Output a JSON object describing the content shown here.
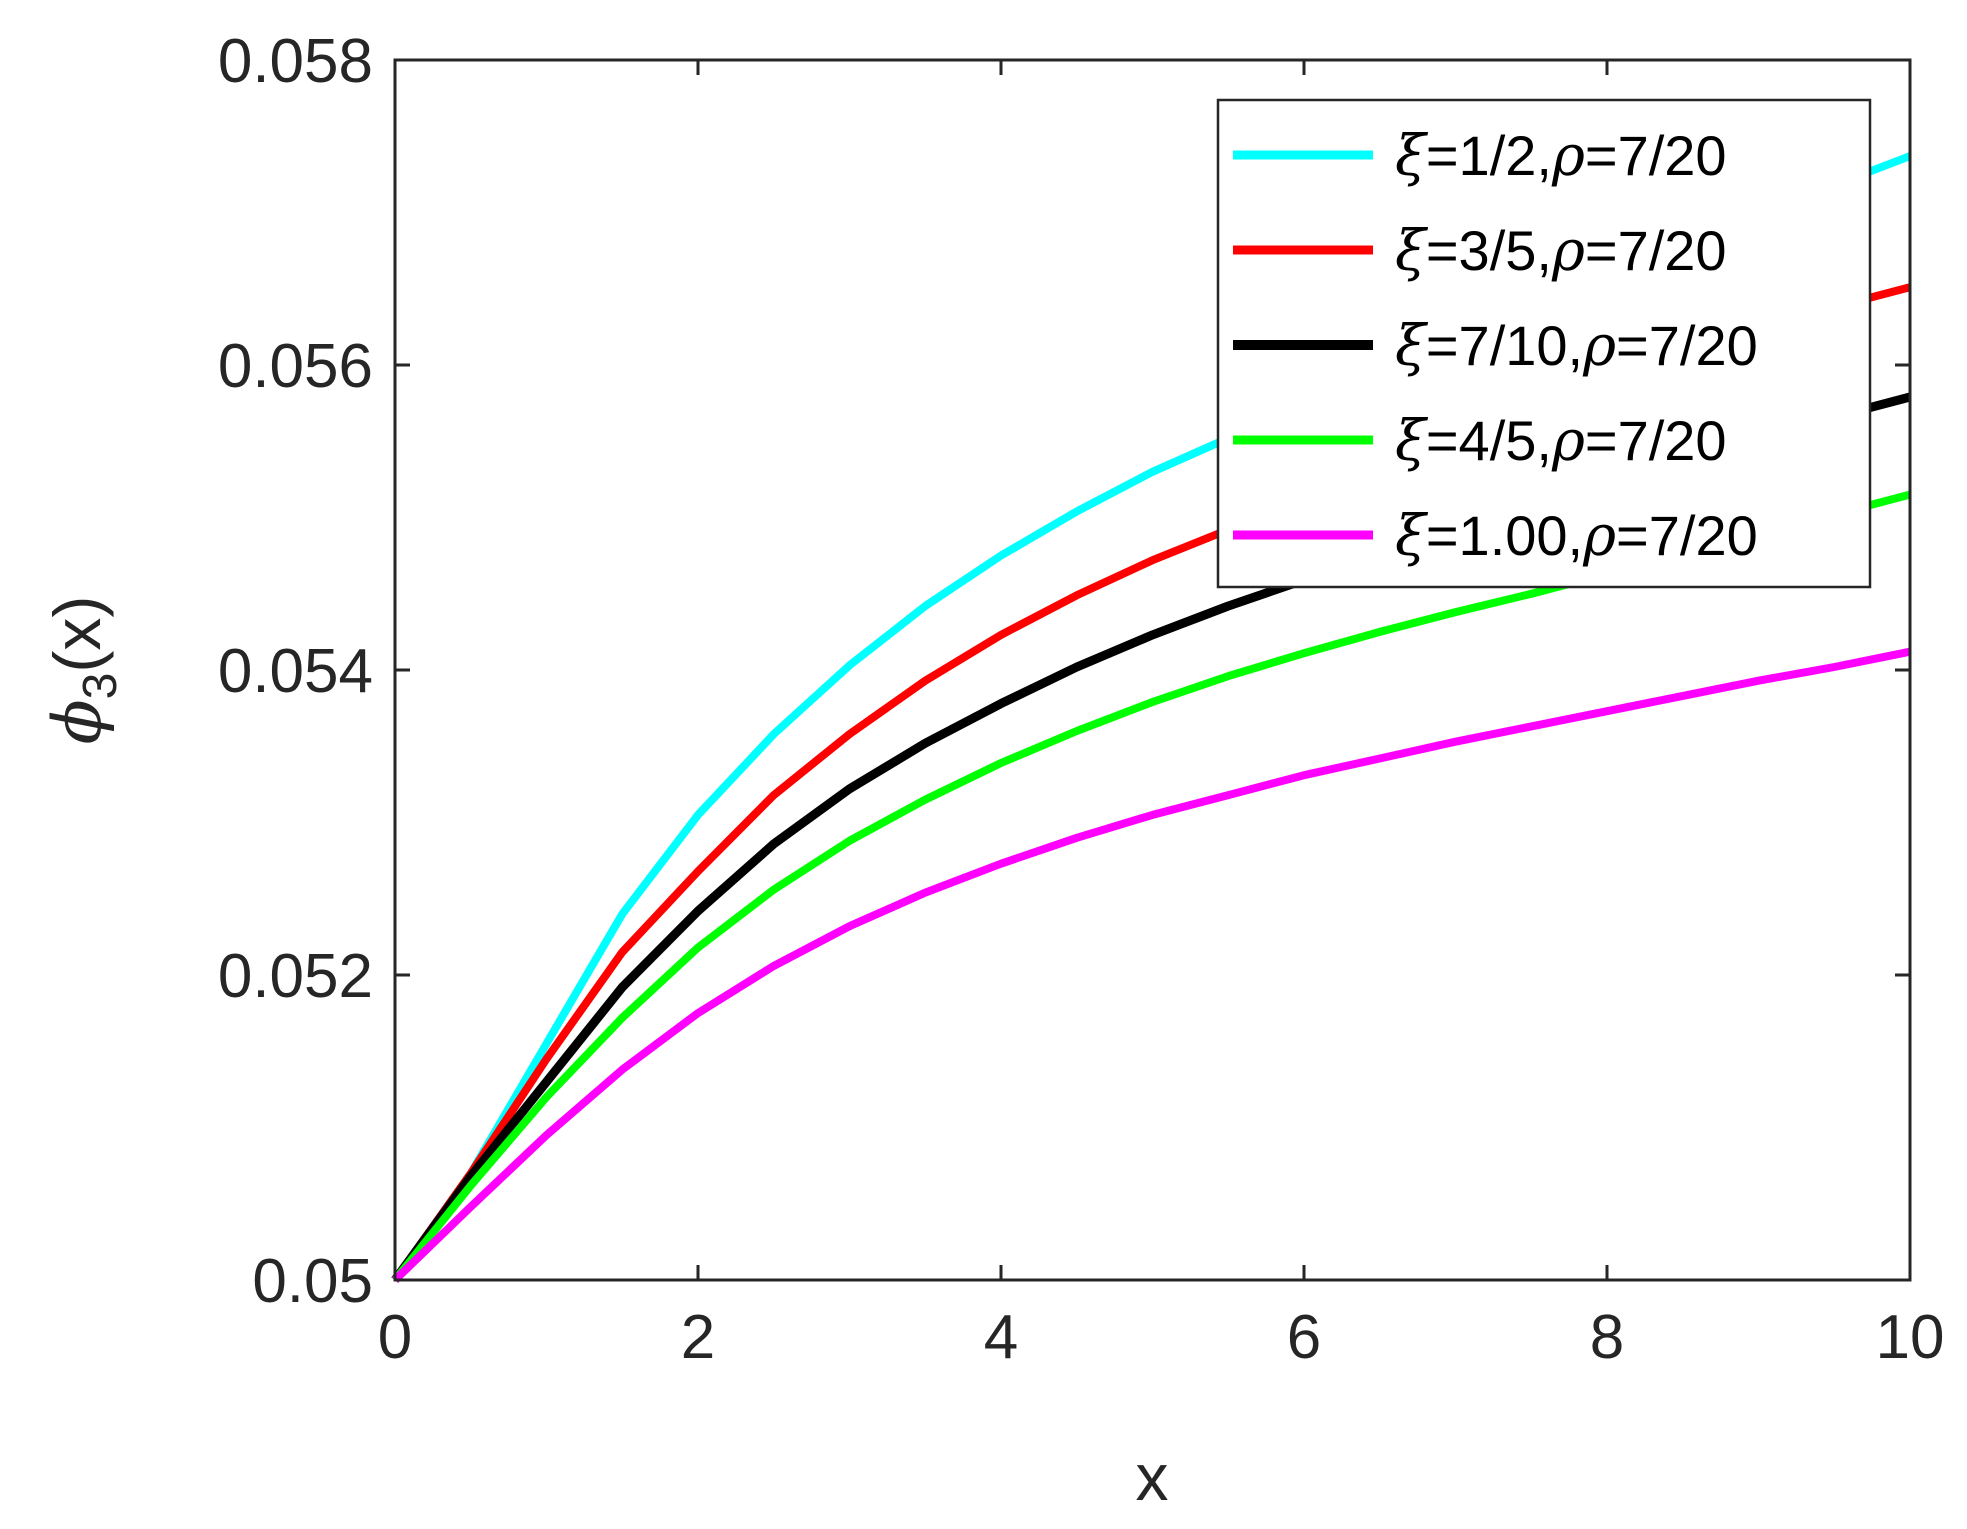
{
  "chart_data": {
    "type": "line",
    "xlabel": "x",
    "ylabel": {
      "main": "ϕ",
      "sub": "3",
      "tail": "(x)"
    },
    "xlim": [
      0,
      10
    ],
    "ylim": [
      0.05,
      0.058
    ],
    "xticks": [
      0,
      2,
      4,
      6,
      8,
      10
    ],
    "xtick_labels": [
      "0",
      "2",
      "4",
      "6",
      "8",
      "10"
    ],
    "yticks": [
      0.05,
      0.052,
      0.054,
      0.056,
      0.058
    ],
    "ytick_labels": [
      "0.05",
      "0.052",
      "0.054",
      "0.056",
      "0.058"
    ],
    "grid": false,
    "legend_position": "top-right",
    "x": [
      0,
      0.5,
      1,
      1.5,
      2,
      2.5,
      3,
      3.5,
      4,
      4.5,
      5,
      5.5,
      6,
      6.5,
      7,
      7.5,
      8,
      8.5,
      9,
      9.5,
      10
    ],
    "series": [
      {
        "name": "ξ=1/2,ρ=7/20",
        "legend": {
          "xi": "ξ",
          "mid": "=1/2,",
          "rho": "ρ",
          "tail": "=7/20"
        },
        "color": "#00ffff",
        "values": [
          0.05,
          0.0507,
          0.05155,
          0.0524,
          0.05305,
          0.05358,
          0.05403,
          0.05442,
          0.05475,
          0.05504,
          0.0553,
          0.05552,
          0.05572,
          0.0559,
          0.05607,
          0.05623,
          0.05658,
          0.0568,
          0.05698,
          0.05718,
          0.05737
        ]
      },
      {
        "name": "ξ=3/5,ρ=7/20",
        "legend": {
          "xi": "ξ",
          "mid": "=3/5,",
          "rho": "ρ",
          "tail": "=7/20"
        },
        "color": "#ff0000",
        "values": [
          0.05,
          0.0507,
          0.05145,
          0.05215,
          0.05268,
          0.05318,
          0.05358,
          0.05393,
          0.05423,
          0.05449,
          0.05472,
          0.05492,
          0.0551,
          0.05527,
          0.05542,
          0.05556,
          0.05595,
          0.0561,
          0.05625,
          0.05638,
          0.05651
        ]
      },
      {
        "name": "ξ=7/10,ρ=7/20",
        "legend": {
          "xi": "ξ",
          "mid": "=7/10,",
          "rho": "ρ",
          "tail": "=7/20"
        },
        "color": "#000000",
        "values": [
          0.05,
          0.05068,
          0.0513,
          0.05192,
          0.05242,
          0.05286,
          0.05322,
          0.05352,
          0.05378,
          0.05402,
          0.05423,
          0.05442,
          0.05459,
          0.05474,
          0.05488,
          0.05502,
          0.05525,
          0.05539,
          0.05552,
          0.05566,
          0.05579
        ]
      },
      {
        "name": "ξ=4/5,ρ=7/20",
        "legend": {
          "xi": "ξ",
          "mid": "=4/5,",
          "rho": "ρ",
          "tail": "=7/20"
        },
        "color": "#00ff00",
        "values": [
          0.05,
          0.05062,
          0.0512,
          0.05172,
          0.05218,
          0.05256,
          0.05288,
          0.05315,
          0.05339,
          0.0536,
          0.05379,
          0.05396,
          0.05411,
          0.05425,
          0.05438,
          0.0545,
          0.05463,
          0.05477,
          0.0549,
          0.05502,
          0.05515
        ]
      },
      {
        "name": "ξ=1.00,ρ=7/20",
        "legend": {
          "xi": "ξ",
          "mid": "=1.00,",
          "rho": "ρ",
          "tail": "=7/20"
        },
        "color": "#ff00ff",
        "values": [
          0.05,
          0.05048,
          0.05095,
          0.05138,
          0.05175,
          0.05206,
          0.05232,
          0.05254,
          0.05273,
          0.0529,
          0.05305,
          0.05318,
          0.05331,
          0.05342,
          0.05353,
          0.05363,
          0.05373,
          0.05383,
          0.05393,
          0.05402,
          0.05412
        ]
      }
    ]
  }
}
